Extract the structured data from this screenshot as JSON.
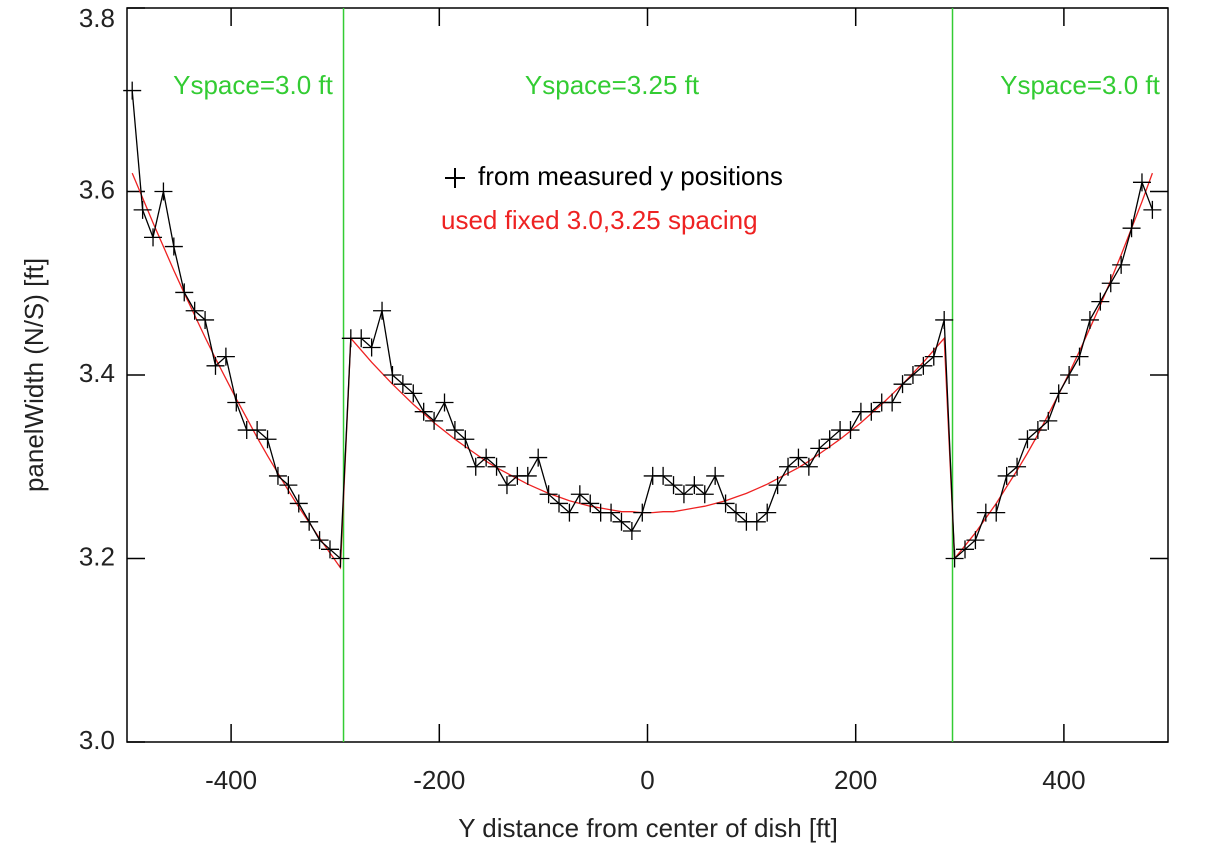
{
  "chart_data": {
    "type": "line",
    "xlabel": "Y distance from center of dish [ft]",
    "ylabel": "panelWidth (N/S) [ft]",
    "xlim": [
      -500,
      500
    ],
    "ylim": [
      3.0,
      3.8
    ],
    "xticks": [
      -400,
      -200,
      0,
      200,
      400
    ],
    "yticks": [
      {
        "value": 3.0,
        "label": "3.0"
      },
      3.2,
      3.4,
      3.6,
      3.8
    ],
    "vlines": [
      -292,
      293
    ],
    "vline_color": "#33cc33",
    "annotations": [
      "Yspace=3.0 ft",
      "Yspace=3.25 ft",
      "Yspace=3.0 ft"
    ],
    "x": [
      -495,
      -485,
      -475,
      -465,
      -455,
      -445,
      -435,
      -425,
      -415,
      -405,
      -395,
      -385,
      -375,
      -365,
      -355,
      -345,
      -335,
      -325,
      -315,
      -305,
      -295,
      -285,
      -275,
      -265,
      -255,
      -245,
      -235,
      -225,
      -215,
      -205,
      -195,
      -185,
      -175,
      -165,
      -155,
      -145,
      -135,
      -125,
      -115,
      -105,
      -95,
      -85,
      -75,
      -65,
      -55,
      -45,
      -35,
      -25,
      -15,
      -5,
      5,
      15,
      25,
      35,
      45,
      55,
      65,
      75,
      85,
      95,
      105,
      115,
      125,
      135,
      145,
      155,
      165,
      175,
      185,
      195,
      205,
      215,
      225,
      235,
      245,
      255,
      265,
      275,
      285,
      295,
      305,
      315,
      325,
      335,
      345,
      355,
      365,
      375,
      385,
      395,
      405,
      415,
      425,
      435,
      445,
      455,
      465,
      475,
      485
    ],
    "series": [
      {
        "name": "from measured y positions",
        "color": "#000000",
        "marker": "plus",
        "values": [
          3.71,
          3.58,
          3.55,
          3.6,
          3.54,
          3.49,
          3.47,
          3.46,
          3.41,
          3.42,
          3.37,
          3.34,
          3.34,
          3.33,
          3.29,
          3.28,
          3.26,
          3.24,
          3.22,
          3.21,
          3.2,
          3.44,
          3.44,
          3.43,
          3.47,
          3.4,
          3.39,
          3.38,
          3.36,
          3.35,
          3.37,
          3.34,
          3.33,
          3.3,
          3.31,
          3.3,
          3.28,
          3.29,
          3.29,
          3.31,
          3.27,
          3.26,
          3.25,
          3.27,
          3.26,
          3.25,
          3.25,
          3.24,
          3.23,
          3.25,
          3.29,
          3.29,
          3.28,
          3.27,
          3.28,
          3.27,
          3.29,
          3.26,
          3.25,
          3.24,
          3.24,
          3.25,
          3.28,
          3.3,
          3.31,
          3.3,
          3.32,
          3.33,
          3.34,
          3.34,
          3.36,
          3.36,
          3.37,
          3.37,
          3.39,
          3.4,
          3.41,
          3.42,
          3.46,
          3.2,
          3.21,
          3.22,
          3.25,
          3.25,
          3.29,
          3.3,
          3.33,
          3.34,
          3.35,
          3.38,
          3.4,
          3.42,
          3.46,
          3.48,
          3.5,
          3.52,
          3.56,
          3.61,
          3.58
        ]
      },
      {
        "name": "used fixed 3.0,3.25 spacing",
        "color": "#ee2222",
        "marker": "none",
        "values": [
          3.62,
          3.593,
          3.566,
          3.54,
          3.514,
          3.489,
          3.465,
          3.441,
          3.418,
          3.396,
          3.374,
          3.353,
          3.332,
          3.312,
          3.293,
          3.274,
          3.256,
          3.239,
          3.222,
          3.206,
          3.19,
          3.44,
          3.427,
          3.414,
          3.402,
          3.39,
          3.379,
          3.368,
          3.358,
          3.348,
          3.339,
          3.33,
          3.322,
          3.314,
          3.306,
          3.299,
          3.293,
          3.287,
          3.281,
          3.276,
          3.271,
          3.267,
          3.263,
          3.26,
          3.257,
          3.255,
          3.253,
          3.251,
          3.251,
          3.25,
          3.25,
          3.251,
          3.251,
          3.253,
          3.255,
          3.257,
          3.26,
          3.263,
          3.267,
          3.271,
          3.276,
          3.281,
          3.287,
          3.293,
          3.299,
          3.306,
          3.314,
          3.322,
          3.33,
          3.339,
          3.348,
          3.358,
          3.368,
          3.379,
          3.39,
          3.402,
          3.414,
          3.427,
          3.44,
          3.2,
          3.214,
          3.228,
          3.244,
          3.26,
          3.278,
          3.296,
          3.315,
          3.335,
          3.357,
          3.379,
          3.402,
          3.426,
          3.451,
          3.476,
          3.503,
          3.531,
          3.56,
          3.589,
          3.62
        ]
      }
    ]
  }
}
